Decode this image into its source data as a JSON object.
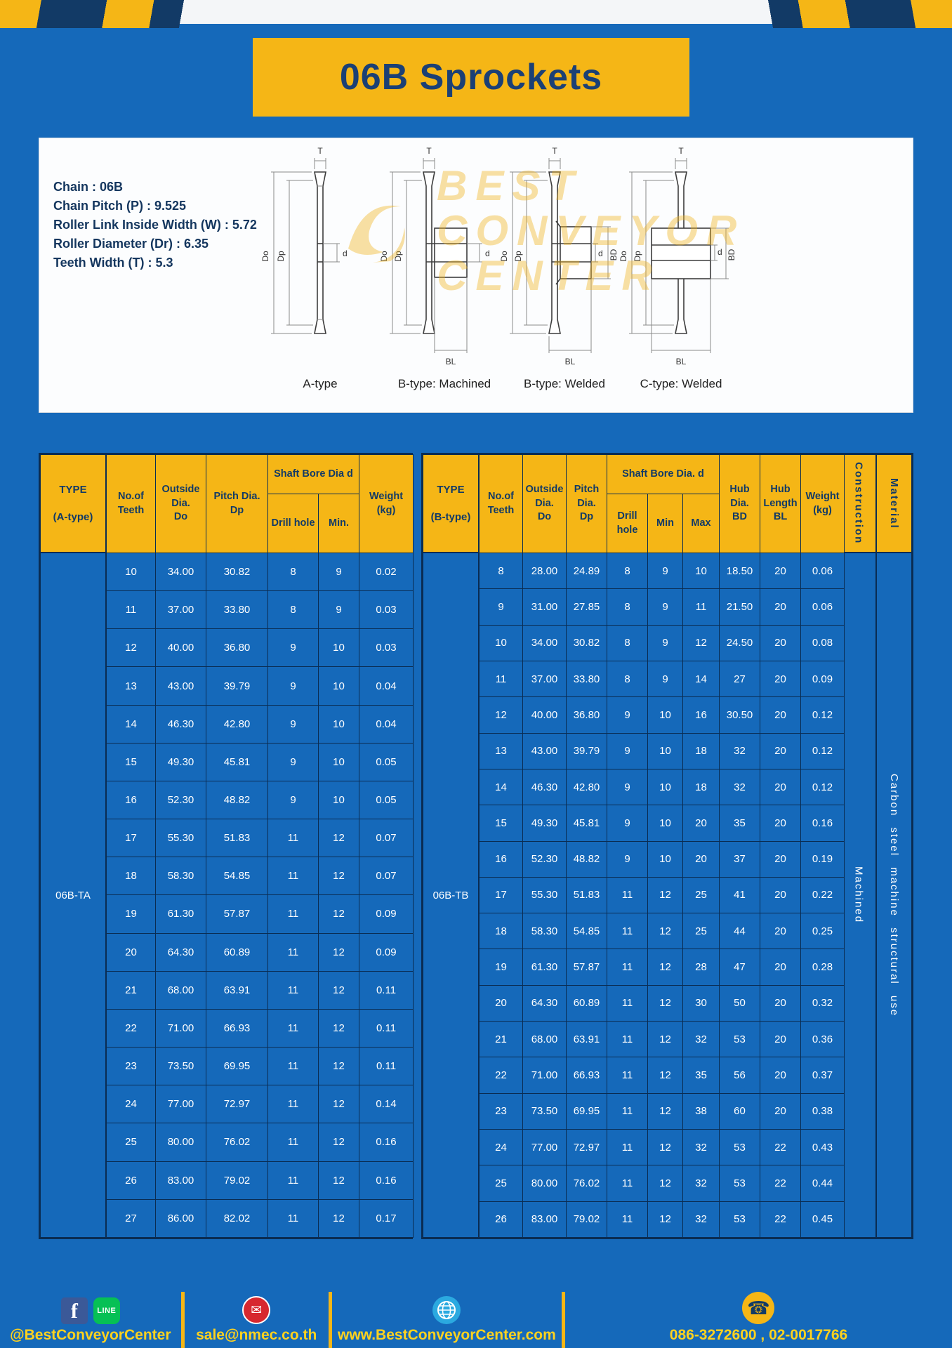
{
  "colors": {
    "blue": "#1569ba",
    "yellow": "#f5b616",
    "navy": "#123a66",
    "border": "#0a2c52",
    "banner-text": "#1b4075"
  },
  "page": {
    "title": "06B Sprockets"
  },
  "specs": {
    "lines": [
      "Chain : 06B",
      "Chain Pitch (P) : 9.525",
      "Roller Link Inside Width (W) : 5.72",
      "Roller Diameter (Dr) : 6.35",
      "Teeth Width (T) : 5.3"
    ]
  },
  "diagrams": {
    "labels": [
      "A-type",
      "B-type: Machined",
      "B-type: Welded",
      "C-type: Welded"
    ],
    "dims": {
      "t": "T",
      "do": "Do",
      "dp": "Dp",
      "d": "d",
      "bd": "BD",
      "bl": "BL"
    }
  },
  "watermark": {
    "lines": [
      "BEST",
      "CONVEYOR",
      "CENTER"
    ]
  },
  "table_a": {
    "headers": {
      "type": "TYPE\n(A-type)",
      "teeth": "No.of\nTeeth",
      "outside": "Outside\nDia.\nDo",
      "pitch": "Pitch Dia.\nDp",
      "bore_group": "Shaft Bore Dia d",
      "drill": "Drill hole",
      "min": "Min.",
      "weight": "Weight\n(kg)"
    },
    "type_label": "06B-TA",
    "rows": [
      [
        "10",
        "34.00",
        "30.82",
        "8",
        "9",
        "0.02"
      ],
      [
        "11",
        "37.00",
        "33.80",
        "8",
        "9",
        "0.03"
      ],
      [
        "12",
        "40.00",
        "36.80",
        "9",
        "10",
        "0.03"
      ],
      [
        "13",
        "43.00",
        "39.79",
        "9",
        "10",
        "0.04"
      ],
      [
        "14",
        "46.30",
        "42.80",
        "9",
        "10",
        "0.04"
      ],
      [
        "15",
        "49.30",
        "45.81",
        "9",
        "10",
        "0.05"
      ],
      [
        "16",
        "52.30",
        "48.82",
        "9",
        "10",
        "0.05"
      ],
      [
        "17",
        "55.30",
        "51.83",
        "11",
        "12",
        "0.07"
      ],
      [
        "18",
        "58.30",
        "54.85",
        "11",
        "12",
        "0.07"
      ],
      [
        "19",
        "61.30",
        "57.87",
        "11",
        "12",
        "0.09"
      ],
      [
        "20",
        "64.30",
        "60.89",
        "11",
        "12",
        "0.09"
      ],
      [
        "21",
        "68.00",
        "63.91",
        "11",
        "12",
        "0.11"
      ],
      [
        "22",
        "71.00",
        "66.93",
        "11",
        "12",
        "0.11"
      ],
      [
        "23",
        "73.50",
        "69.95",
        "11",
        "12",
        "0.11"
      ],
      [
        "24",
        "77.00",
        "72.97",
        "11",
        "12",
        "0.14"
      ],
      [
        "25",
        "80.00",
        "76.02",
        "11",
        "12",
        "0.16"
      ],
      [
        "26",
        "83.00",
        "79.02",
        "11",
        "12",
        "0.16"
      ],
      [
        "27",
        "86.00",
        "82.02",
        "11",
        "12",
        "0.17"
      ]
    ]
  },
  "table_b": {
    "headers": {
      "type": "TYPE\n(B-type)",
      "teeth": "No.of\nTeeth",
      "outside": "Outside\nDia.\nDo",
      "pitch": "Pitch\nDia.\nDp",
      "bore_group": "Shaft Bore Dia.  d",
      "drill": "Drill hole",
      "min": "Min",
      "max": "Max",
      "hub_dia": "Hub\nDia.\nBD",
      "hub_len": "Hub\nLength\nBL",
      "weight": "Weight\n(kg)",
      "construction": "Construction",
      "material": "Material"
    },
    "type_label": "06B-TB",
    "construction_value": "Machined",
    "material_value": "Carbon steel machine structural use",
    "rows": [
      [
        "8",
        "28.00",
        "24.89",
        "8",
        "9",
        "10",
        "18.50",
        "20",
        "0.06"
      ],
      [
        "9",
        "31.00",
        "27.85",
        "8",
        "9",
        "11",
        "21.50",
        "20",
        "0.06"
      ],
      [
        "10",
        "34.00",
        "30.82",
        "8",
        "9",
        "12",
        "24.50",
        "20",
        "0.08"
      ],
      [
        "11",
        "37.00",
        "33.80",
        "8",
        "9",
        "14",
        "27",
        "20",
        "0.09"
      ],
      [
        "12",
        "40.00",
        "36.80",
        "9",
        "10",
        "16",
        "30.50",
        "20",
        "0.12"
      ],
      [
        "13",
        "43.00",
        "39.79",
        "9",
        "10",
        "18",
        "32",
        "20",
        "0.12"
      ],
      [
        "14",
        "46.30",
        "42.80",
        "9",
        "10",
        "18",
        "32",
        "20",
        "0.12"
      ],
      [
        "15",
        "49.30",
        "45.81",
        "9",
        "10",
        "20",
        "35",
        "20",
        "0.16"
      ],
      [
        "16",
        "52.30",
        "48.82",
        "9",
        "10",
        "20",
        "37",
        "20",
        "0.19"
      ],
      [
        "17",
        "55.30",
        "51.83",
        "11",
        "12",
        "25",
        "41",
        "20",
        "0.22"
      ],
      [
        "18",
        "58.30",
        "54.85",
        "11",
        "12",
        "25",
        "44",
        "20",
        "0.25"
      ],
      [
        "19",
        "61.30",
        "57.87",
        "11",
        "12",
        "28",
        "47",
        "20",
        "0.28"
      ],
      [
        "20",
        "64.30",
        "60.89",
        "11",
        "12",
        "30",
        "50",
        "20",
        "0.32"
      ],
      [
        "21",
        "68.00",
        "63.91",
        "11",
        "12",
        "32",
        "53",
        "20",
        "0.36"
      ],
      [
        "22",
        "71.00",
        "66.93",
        "11",
        "12",
        "35",
        "56",
        "20",
        "0.37"
      ],
      [
        "23",
        "73.50",
        "69.95",
        "11",
        "12",
        "38",
        "60",
        "20",
        "0.38"
      ],
      [
        "24",
        "77.00",
        "72.97",
        "11",
        "12",
        "32",
        "53",
        "22",
        "0.43"
      ],
      [
        "25",
        "80.00",
        "76.02",
        "11",
        "12",
        "32",
        "53",
        "22",
        "0.44"
      ],
      [
        "26",
        "83.00",
        "79.02",
        "11",
        "12",
        "32",
        "53",
        "22",
        "0.45"
      ]
    ]
  },
  "footer": {
    "sections": [
      {
        "label": "@BestConveyorCenter",
        "icons": [
          "facebook-icon",
          "line-icon"
        ]
      },
      {
        "label": "sale@nmec.co.th",
        "icons": [
          "email-icon"
        ]
      },
      {
        "label": "www.BestConveyorCenter.com",
        "icons": [
          "globe-icon"
        ]
      },
      {
        "label": "086-3272600 , 02-0017766",
        "icons": [
          "phone-icon"
        ]
      }
    ],
    "facebook_letter": "f",
    "line_text": "LINE"
  }
}
